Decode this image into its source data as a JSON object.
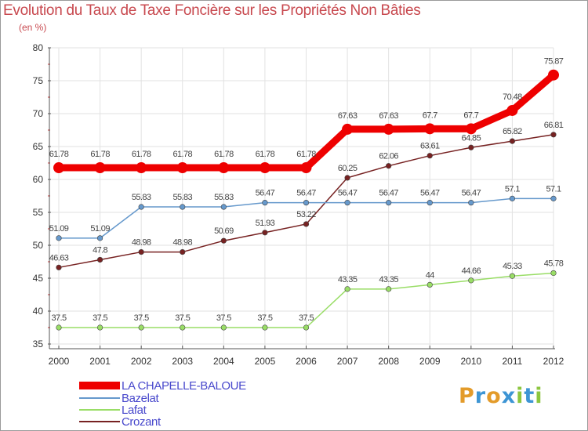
{
  "chart_data": {
    "type": "line",
    "title": "Evolution du Taux de Taxe Foncière sur les Propriétés Non Bâties",
    "ylabel": "(en %)",
    "xlabel": "",
    "x": [
      "2000",
      "2001",
      "2002",
      "2003",
      "2004",
      "2005",
      "2006",
      "2007",
      "2008",
      "2009",
      "2010",
      "2011",
      "2012"
    ],
    "ylim": [
      35,
      80
    ],
    "yticks": [
      35,
      40,
      45,
      50,
      55,
      60,
      65,
      70,
      75,
      80
    ],
    "series": [
      {
        "name": "LA CHAPELLE-BALOUE",
        "color": "#ee0000",
        "labels": [
          "61.78",
          "61.78",
          "61.78",
          "61.78",
          "61.78",
          "61.78",
          "61.78",
          "67.63",
          "67.63",
          "67.7",
          "67.7",
          "70.48",
          "75.87"
        ],
        "values": [
          61.78,
          61.78,
          61.78,
          61.78,
          61.78,
          61.78,
          61.78,
          67.63,
          67.63,
          67.7,
          67.7,
          70.48,
          75.87
        ]
      },
      {
        "name": "Bazelat",
        "color": "#6699cc",
        "labels": [
          "51.09",
          "51.09",
          "55.83",
          "55.83",
          "55.83",
          "56.47",
          "56.47",
          "56.47",
          "56.47",
          "56.47",
          "56.47",
          "57.1",
          "57.1"
        ],
        "values": [
          51.09,
          51.09,
          55.83,
          55.83,
          55.83,
          56.47,
          56.47,
          56.47,
          56.47,
          56.47,
          56.47,
          57.1,
          57.1
        ]
      },
      {
        "name": "Lafat",
        "color": "#99dd66",
        "labels": [
          "37.5",
          "37.5",
          "37.5",
          "37.5",
          "37.5",
          "37.5",
          "37.5",
          "43.35",
          "43.35",
          "44",
          "44.66",
          "45.33",
          "45.78"
        ],
        "values": [
          37.5,
          37.5,
          37.5,
          37.5,
          37.5,
          37.5,
          37.5,
          43.35,
          43.35,
          44,
          44.66,
          45.33,
          45.78
        ]
      },
      {
        "name": "Crozant",
        "color": "#772222",
        "labels": [
          "46.63",
          "47.8",
          "48.98",
          "48.98",
          "50.69",
          "51.93",
          "53.22",
          "60.25",
          "62.06",
          "63.61",
          "64.85",
          "65.82",
          "66.81"
        ],
        "values": [
          46.63,
          47.8,
          48.98,
          48.98,
          50.69,
          51.93,
          53.22,
          60.25,
          62.06,
          63.61,
          64.85,
          65.82,
          66.81
        ]
      }
    ]
  },
  "logo": {
    "text": "Proxiti",
    "letters": [
      "P",
      "r",
      "o",
      "x",
      "i",
      "t",
      "i"
    ],
    "colors": [
      "#e39b2a",
      "#3d95d4",
      "#e39b2a",
      "#3d95d4",
      "#8cc63f",
      "#3d95d4",
      "#8cc63f"
    ]
  }
}
